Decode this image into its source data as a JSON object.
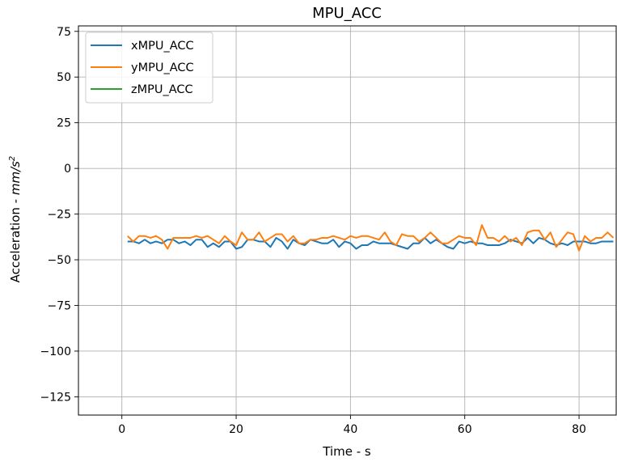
{
  "chart_data": {
    "type": "line",
    "title": "MPU_ACC",
    "xlabel": "Time - s",
    "ylabel_prefix": "Acceleration - ",
    "ylabel_unit_base": "mm/s",
    "ylabel_unit_exp": "2",
    "xlim": [
      -7.6,
      86.5
    ],
    "ylim": [
      -135,
      78
    ],
    "xticks": [
      0,
      20,
      40,
      60,
      80
    ],
    "yticks": [
      75,
      50,
      25,
      0,
      -25,
      -50,
      -75,
      -100,
      -125
    ],
    "ytick_labels": [
      "75",
      "50",
      "25",
      "0",
      "−25",
      "−50",
      "−75",
      "−100",
      "−125"
    ],
    "grid": true,
    "legend_position": "top-left",
    "series": [
      {
        "name": "xMPU_ACC",
        "color": "#1f77b4",
        "x": [
          1,
          2,
          3,
          4,
          5,
          6,
          7,
          8,
          9,
          10,
          11,
          12,
          13,
          14,
          15,
          16,
          17,
          18,
          19,
          20,
          21,
          22,
          23,
          24,
          25,
          26,
          27,
          28,
          29,
          30,
          31,
          32,
          33,
          34,
          35,
          36,
          37,
          38,
          39,
          40,
          41,
          42,
          43,
          44,
          45,
          46,
          47,
          48,
          49,
          50,
          51,
          52,
          53,
          54,
          55,
          56,
          57,
          58,
          59,
          60,
          61,
          62,
          63,
          64,
          65,
          66,
          67,
          68,
          69,
          70,
          71,
          72,
          73,
          74,
          75,
          76,
          77,
          78,
          79,
          80,
          81,
          82,
          83,
          84,
          85,
          86
        ],
        "y": [
          -40,
          -40,
          -41,
          -39,
          -41,
          -40,
          -41,
          -39,
          -39,
          -41,
          -40,
          -42,
          -39,
          -39,
          -43,
          -41,
          -43,
          -40,
          -40,
          -44,
          -43,
          -39,
          -39,
          -40,
          -40,
          -43,
          -38,
          -40,
          -44,
          -39,
          -41,
          -42,
          -39,
          -40,
          -41,
          -41,
          -39,
          -43,
          -40,
          -41,
          -44,
          -42,
          -42,
          -40,
          -41,
          -41,
          -41,
          -42,
          -43,
          -44,
          -41,
          -41,
          -38,
          -41,
          -39,
          -41,
          -43,
          -44,
          -40,
          -41,
          -40,
          -41,
          -41,
          -42,
          -42,
          -42,
          -41,
          -39,
          -40,
          -41,
          -38,
          -41,
          -38,
          -39,
          -41,
          -42,
          -41,
          -42,
          -40,
          -40,
          -40,
          -41,
          -41,
          -40,
          -40,
          -40
        ]
      },
      {
        "name": "yMPU_ACC",
        "color": "#ff7f0e",
        "x": [
          1,
          2,
          3,
          4,
          5,
          6,
          7,
          8,
          9,
          10,
          11,
          12,
          13,
          14,
          15,
          16,
          17,
          18,
          19,
          20,
          21,
          22,
          23,
          24,
          25,
          26,
          27,
          28,
          29,
          30,
          31,
          32,
          33,
          34,
          35,
          36,
          37,
          38,
          39,
          40,
          41,
          42,
          43,
          44,
          45,
          46,
          47,
          48,
          49,
          50,
          51,
          52,
          53,
          54,
          55,
          56,
          57,
          58,
          59,
          60,
          61,
          62,
          63,
          64,
          65,
          66,
          67,
          68,
          69,
          70,
          71,
          72,
          73,
          74,
          75,
          76,
          77,
          78,
          79,
          80,
          81,
          82,
          83,
          84,
          85,
          86
        ],
        "y": [
          -37,
          -40,
          -37,
          -37,
          -38,
          -37,
          -39,
          -44,
          -38,
          -38,
          -38,
          -38,
          -37,
          -38,
          -37,
          -39,
          -41,
          -37,
          -40,
          -42,
          -35,
          -39,
          -39,
          -35,
          -40,
          -38,
          -36,
          -36,
          -40,
          -37,
          -41,
          -41,
          -39,
          -39,
          -38,
          -38,
          -37,
          -38,
          -39,
          -37,
          -38,
          -37,
          -37,
          -38,
          -39,
          -35,
          -40,
          -42,
          -36,
          -37,
          -37,
          -40,
          -38,
          -35,
          -38,
          -41,
          -41,
          -39,
          -37,
          -38,
          -38,
          -42,
          -31,
          -38,
          -38,
          -40,
          -37,
          -40,
          -38,
          -42,
          -35,
          -34,
          -34,
          -39,
          -35,
          -43,
          -39,
          -35,
          -36,
          -45,
          -37,
          -40,
          -38,
          -38,
          -35,
          -38
        ]
      },
      {
        "name": "zMPU_ACC",
        "color": "#2ca02c",
        "x": [],
        "y": []
      }
    ]
  }
}
